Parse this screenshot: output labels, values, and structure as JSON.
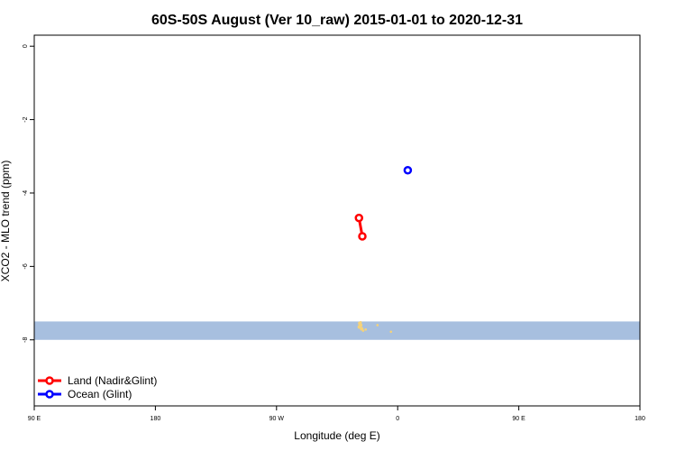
{
  "chart_data": {
    "type": "line",
    "title": "60S-50S August (Ver 10_raw)   2015-01-01 to 2020-12-31",
    "xlabel": "Longitude (deg E)",
    "ylabel": "XCO2 - MLO trend (ppm)",
    "x_ticks": [
      "90 E",
      "180",
      "90 W",
      "0",
      "90 E",
      "180"
    ],
    "y_ticks": [
      0,
      -2,
      -4,
      -6,
      -8
    ],
    "ylim": [
      -9.8,
      0.3
    ],
    "grid": false,
    "legend_position": "bottom-left",
    "series": [
      {
        "name": "Land (Nadir&Glint)",
        "color": "#ff0000",
        "lon": [
          283.0,
          285.0
        ],
        "values": [
          -4.68,
          -5.18
        ]
      },
      {
        "name": "Ocean (Glint)",
        "color": "#0000ff",
        "lon": [
          312.0
        ],
        "values": [
          -3.38
        ]
      }
    ],
    "background_band": {
      "color": "#a7bfdf",
      "ymin": -8.0,
      "ymax": -7.5
    },
    "land_color": "#f5d27a"
  }
}
